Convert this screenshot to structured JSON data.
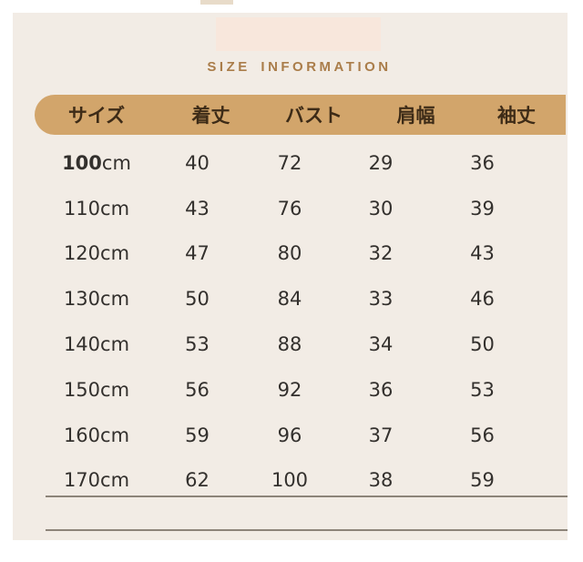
{
  "title": {
    "text": "SIZE INFORMATION"
  },
  "colors": {
    "page_background": "#ffffff",
    "card_background": "#f2ece5",
    "banner": "#f8e7dc",
    "header_bar": "#d2a56b",
    "header_text": "#3d2b17",
    "title_text": "#aa7d4a",
    "body_text": "#33302d",
    "rule": "#8d8479"
  },
  "table": {
    "columns": [
      "サイズ",
      "着丈",
      "バスト",
      "肩幅",
      "袖丈"
    ],
    "rows": [
      {
        "size_value": "100",
        "size_unit": "cm",
        "bold_size": true,
        "values": [
          "40",
          "72",
          "29",
          "36"
        ]
      },
      {
        "size_value": "110",
        "size_unit": "cm",
        "bold_size": false,
        "values": [
          "43",
          "76",
          "30",
          "39"
        ]
      },
      {
        "size_value": "120",
        "size_unit": "cm",
        "bold_size": false,
        "values": [
          "47",
          "80",
          "32",
          "43"
        ]
      },
      {
        "size_value": "130",
        "size_unit": "cm",
        "bold_size": false,
        "values": [
          "50",
          "84",
          "33",
          "46"
        ]
      },
      {
        "size_value": "140",
        "size_unit": "cm",
        "bold_size": false,
        "values": [
          "53",
          "88",
          "34",
          "50"
        ]
      },
      {
        "size_value": "150",
        "size_unit": "cm",
        "bold_size": false,
        "values": [
          "56",
          "92",
          "36",
          "53"
        ]
      },
      {
        "size_value": "160",
        "size_unit": "cm",
        "bold_size": false,
        "values": [
          "59",
          "96",
          "37",
          "56"
        ]
      },
      {
        "size_value": "170",
        "size_unit": "cm",
        "bold_size": false,
        "values": [
          "62",
          "100",
          "38",
          "59"
        ]
      }
    ]
  },
  "chart_data": {
    "type": "table",
    "title": "SIZE INFORMATION",
    "columns": [
      "サイズ",
      "着丈",
      "バスト",
      "肩幅",
      "袖丈"
    ],
    "rows": [
      [
        "100cm",
        40,
        72,
        29,
        36
      ],
      [
        "110cm",
        43,
        76,
        30,
        39
      ],
      [
        "120cm",
        47,
        80,
        32,
        43
      ],
      [
        "130cm",
        50,
        84,
        33,
        46
      ],
      [
        "140cm",
        53,
        88,
        34,
        50
      ],
      [
        "150cm",
        56,
        92,
        36,
        53
      ],
      [
        "160cm",
        59,
        96,
        37,
        56
      ],
      [
        "170cm",
        62,
        100,
        38,
        59
      ]
    ]
  }
}
